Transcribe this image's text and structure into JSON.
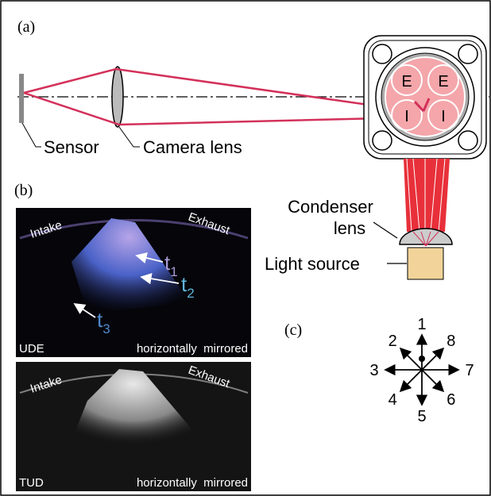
{
  "panel_a": {
    "label": "(a)",
    "sensor": "Sensor",
    "camera_lens": "Camera lens",
    "valves": [
      "E",
      "E",
      "I",
      "I"
    ],
    "condenser": [
      "Condenser",
      "lens"
    ],
    "light_source": "Light source"
  },
  "panel_b": {
    "label": "(b)",
    "images": [
      {
        "intake": "Intake",
        "exhaust": "Exhaust",
        "source": "UDE",
        "note": "horizontally  mirrored",
        "times": [
          {
            "base": "t",
            "sub": "1"
          },
          {
            "base": "t",
            "sub": "2"
          },
          {
            "base": "t",
            "sub": "3"
          }
        ]
      },
      {
        "intake": "Intake",
        "exhaust": "Exhaust",
        "source": "TUD",
        "note": "horizontally  mirrored"
      }
    ]
  },
  "panel_c": {
    "label": "(c)",
    "directions": [
      "1",
      "2",
      "3",
      "4",
      "5",
      "6",
      "7",
      "8"
    ]
  }
}
